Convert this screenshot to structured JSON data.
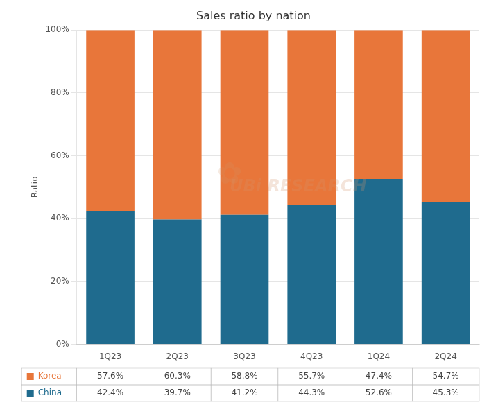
{
  "chart_data": {
    "type": "bar",
    "title": "Sales ratio by nation",
    "ylabel": "Ratio",
    "categories": [
      "1Q23",
      "2Q23",
      "3Q23",
      "4Q23",
      "1Q24",
      "2Q24"
    ],
    "series": [
      {
        "name": "China",
        "color": "#1F6B8E",
        "values": [
          42.4,
          39.7,
          41.2,
          44.3,
          52.6,
          45.3
        ],
        "value_labels": [
          "42.4%",
          "39.7%",
          "41.2%",
          "44.3%",
          "52.6%",
          "45.3%"
        ]
      },
      {
        "name": "Korea",
        "color": "#E8763A",
        "values": [
          57.6,
          60.3,
          58.8,
          55.7,
          47.4,
          54.7
        ],
        "value_labels": [
          "57.6%",
          "60.3%",
          "58.8%",
          "55.7%",
          "47.4%",
          "54.7%"
        ]
      }
    ],
    "stacked": true,
    "ylim": [
      0,
      100
    ],
    "yticks": [
      {
        "value": 0,
        "label": "0%"
      },
      {
        "value": 20,
        "label": "20%"
      },
      {
        "value": 40,
        "label": "40%"
      },
      {
        "value": 60,
        "label": "60%"
      },
      {
        "value": 80,
        "label": "80%"
      },
      {
        "value": 100,
        "label": "100%"
      }
    ],
    "grid": true,
    "legend": "bottom",
    "annotations": [
      {
        "text": "UBi RESEARCH"
      },
      {
        "text": "✿"
      }
    ]
  }
}
